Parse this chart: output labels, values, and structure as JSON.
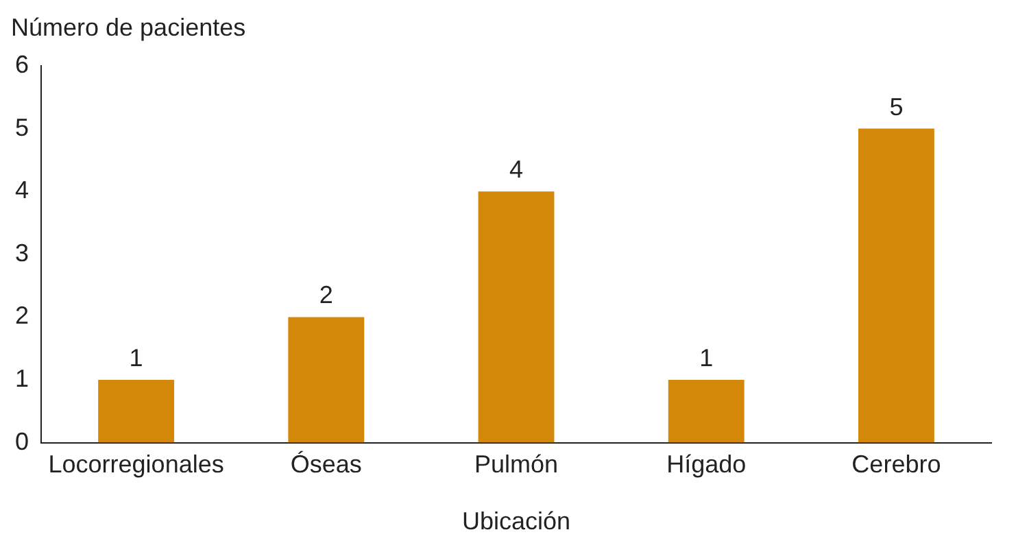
{
  "chart_data": {
    "type": "bar",
    "ylabel": "Número de pacientes",
    "xlabel": "Ubicación",
    "categories": [
      "Locorregionales",
      "Óseas",
      "Pulmón",
      "Hígado",
      "Cerebro"
    ],
    "values": [
      1,
      2,
      4,
      1,
      5
    ],
    "color": "#d4880a",
    "ylim": [
      0,
      6
    ],
    "yticks": [
      0,
      1,
      2,
      3,
      4,
      5,
      6
    ],
    "grid": false,
    "legend": false,
    "data_labels": true
  }
}
